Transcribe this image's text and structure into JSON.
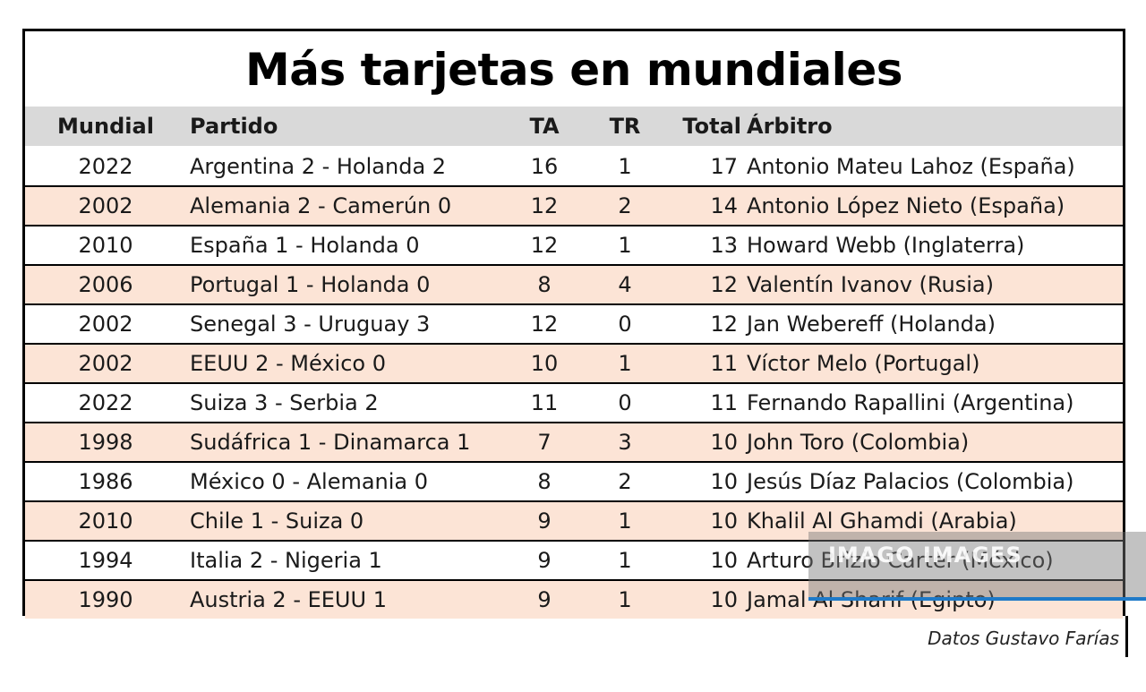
{
  "title": "Más tarjetas en mundiales",
  "headers": {
    "mundial": "Mundial",
    "partido": "Partido",
    "ta": "TA",
    "tr": "TR",
    "total": "Total",
    "arbitro": "Árbitro"
  },
  "rows": [
    {
      "mundial": "2022",
      "partido": "Argentina 2 - Holanda 2",
      "ta": "16",
      "tr": "1",
      "total": "17",
      "arbitro": "Antonio Mateu Lahoz (España)"
    },
    {
      "mundial": "2002",
      "partido": "Alemania 2 - Camerún 0",
      "ta": "12",
      "tr": "2",
      "total": "14",
      "arbitro": "Antonio López Nieto (España)"
    },
    {
      "mundial": "2010",
      "partido": "España 1 - Holanda 0",
      "ta": "12",
      "tr": "1",
      "total": "13",
      "arbitro": "Howard Webb (Inglaterra)"
    },
    {
      "mundial": "2006",
      "partido": "Portugal 1 - Holanda 0",
      "ta": "8",
      "tr": "4",
      "total": "12",
      "arbitro": "Valentín Ivanov (Rusia)"
    },
    {
      "mundial": "2002",
      "partido": "Senegal 3 - Uruguay 3",
      "ta": "12",
      "tr": "0",
      "total": "12",
      "arbitro": "Jan Webereff (Holanda)"
    },
    {
      "mundial": "2002",
      "partido": "EEUU 2 - México 0",
      "ta": "10",
      "tr": "1",
      "total": "11",
      "arbitro": "Víctor Melo (Portugal)"
    },
    {
      "mundial": "2022",
      "partido": "Suiza 3 - Serbia 2",
      "ta": "11",
      "tr": "0",
      "total": "11",
      "arbitro": "Fernando Rapallini (Argentina)"
    },
    {
      "mundial": "1998",
      "partido": "Sudáfrica 1 - Dinamarca 1",
      "ta": "7",
      "tr": "3",
      "total": "10",
      "arbitro": "John Toro (Colombia)"
    },
    {
      "mundial": "1986",
      "partido": "México 0 - Alemania 0",
      "ta": "8",
      "tr": "2",
      "total": "10",
      "arbitro": "Jesús Díaz Palacios (Colombia)"
    },
    {
      "mundial": "2010",
      "partido": "Chile 1 - Suiza 0",
      "ta": "9",
      "tr": "1",
      "total": "10",
      "arbitro": "Khalil Al Ghamdi (Arabia)"
    },
    {
      "mundial": "1994",
      "partido": "Italia 2 - Nigeria 1",
      "ta": "9",
      "tr": "1",
      "total": "10",
      "arbitro": "Arturo Brizio Carter (México)"
    },
    {
      "mundial": "1990",
      "partido": "Austria 2 - EEUU 1",
      "ta": "9",
      "tr": "1",
      "total": "10",
      "arbitro": "Jamal Al Sharif (Egipto)"
    }
  ],
  "source": "Datos Gustavo Farías",
  "watermark": "IMAGO IMAGES",
  "colors": {
    "header_bg": "#d9d9d9",
    "row_alt_bg": "#fce4d6",
    "watermark_bar": "#1f7ac8"
  }
}
